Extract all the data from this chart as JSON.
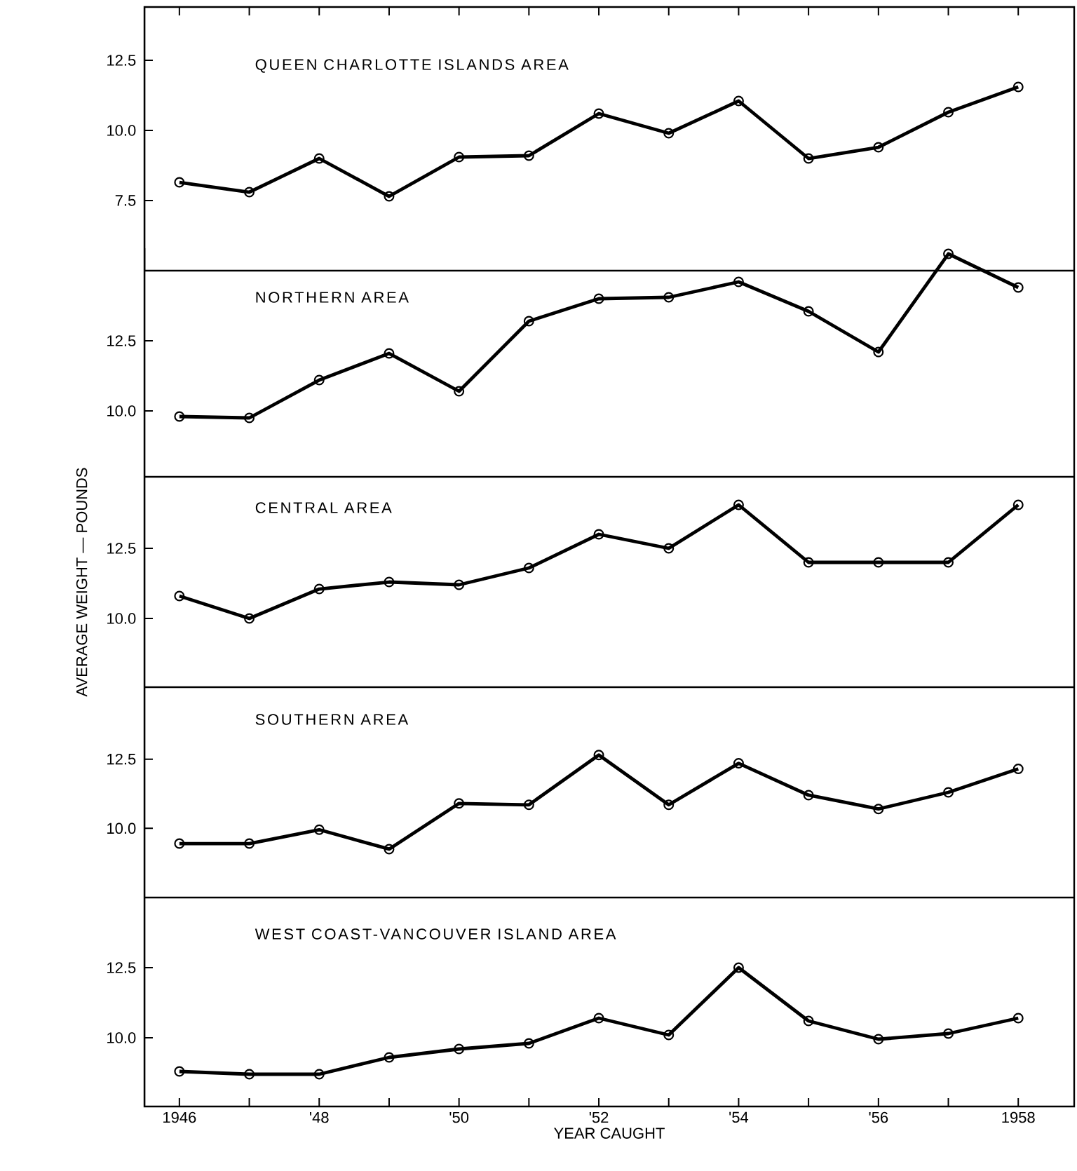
{
  "chart_data": [
    {
      "type": "line",
      "title": "QUEEN CHARLOTTE ISLANDS AREA",
      "x": [
        1946,
        1947,
        1948,
        1949,
        1950,
        1951,
        1952,
        1953,
        1954,
        1955,
        1956,
        1957,
        1958
      ],
      "series": [
        {
          "color": "#000000",
          "values": [
            8.15,
            7.8,
            9.0,
            7.65,
            9.05,
            9.1,
            10.6,
            9.9,
            11.05,
            9.0,
            9.4,
            10.65,
            11.55
          ]
        }
      ],
      "xlim": [
        1945.5,
        1958.8
      ],
      "ylim": [
        5.0,
        14.4
      ],
      "xticks": [
        {
          "value": 1946,
          "label": null
        },
        {
          "value": 1947,
          "label": null
        },
        {
          "value": 1948,
          "label": null
        },
        {
          "value": 1949,
          "label": null
        },
        {
          "value": 1950,
          "label": null
        },
        {
          "value": 1951,
          "label": null
        },
        {
          "value": 1952,
          "label": null
        },
        {
          "value": 1953,
          "label": null
        },
        {
          "value": 1954,
          "label": null
        },
        {
          "value": 1955,
          "label": null
        },
        {
          "value": 1956,
          "label": null
        },
        {
          "value": 1957,
          "label": null
        },
        {
          "value": 1958,
          "label": null
        }
      ],
      "yticks": [
        {
          "value": 7.5,
          "label": "7.5"
        },
        {
          "value": 10,
          "label": "10.0"
        },
        {
          "value": 12.5,
          "label": "12.5"
        }
      ],
      "tick_labels": "y",
      "marker": "circle",
      "line_style": "solid"
    },
    {
      "type": "line",
      "title": "NORTHERN AREA",
      "x": [
        1946,
        1947,
        1948,
        1949,
        1950,
        1951,
        1952,
        1953,
        1954,
        1955,
        1956,
        1957,
        1958
      ],
      "series": [
        {
          "color": "#000000",
          "values": [
            9.8,
            9.75,
            11.1,
            12.05,
            10.7,
            13.2,
            14.0,
            14.05,
            14.6,
            13.55,
            12.1,
            15.6,
            14.4
          ]
        }
      ],
      "xlim": [
        1945.5,
        1958.8
      ],
      "ylim": [
        7.65,
        15.8
      ],
      "yticks": [
        {
          "value": 10,
          "label": "10.0"
        },
        {
          "value": 12.5,
          "label": "12.5"
        }
      ],
      "tick_labels": "y",
      "marker": "circle",
      "line_style": "solid"
    },
    {
      "type": "line",
      "title": "CENTRAL AREA",
      "ylabel": "AVERAGE WEIGHT — POUNDS",
      "x": [
        1946,
        1947,
        1948,
        1949,
        1950,
        1951,
        1952,
        1953,
        1954,
        1955,
        1956,
        1957,
        1958
      ],
      "series": [
        {
          "color": "#000000",
          "values": [
            10.8,
            10.0,
            11.05,
            11.3,
            11.2,
            11.8,
            13.0,
            12.5,
            14.05,
            12.0,
            12.0,
            12.0,
            14.05
          ]
        }
      ],
      "xlim": [
        1945.5,
        1958.8
      ],
      "ylim": [
        7.55,
        15.05
      ],
      "yticks": [
        {
          "value": 10,
          "label": "10.0"
        },
        {
          "value": 12.5,
          "label": "12.5"
        }
      ],
      "tick_labels": "y",
      "marker": "circle",
      "line_style": "solid"
    },
    {
      "type": "line",
      "title": "SOUTHERN AREA",
      "x": [
        1946,
        1947,
        1948,
        1949,
        1950,
        1951,
        1952,
        1953,
        1954,
        1955,
        1956,
        1957,
        1958
      ],
      "series": [
        {
          "color": "#000000",
          "values": [
            9.45,
            9.45,
            9.95,
            9.25,
            10.9,
            10.85,
            12.65,
            10.85,
            12.35,
            11.2,
            10.7,
            11.3,
            12.15
          ]
        }
      ],
      "xlim": [
        1945.5,
        1958.8
      ],
      "ylim": [
        7.5,
        15.1
      ],
      "yticks": [
        {
          "value": 10,
          "label": "10.0"
        },
        {
          "value": 12.5,
          "label": "12.5"
        }
      ],
      "tick_labels": "y",
      "marker": "circle",
      "line_style": "solid"
    },
    {
      "type": "line",
      "title": "WEST COAST-VANCOUVER ISLAND AREA",
      "xlabel": "YEAR CAUGHT",
      "x": [
        1946,
        1947,
        1948,
        1949,
        1950,
        1951,
        1952,
        1953,
        1954,
        1955,
        1956,
        1957,
        1958
      ],
      "series": [
        {
          "color": "#000000",
          "values": [
            8.8,
            8.7,
            8.7,
            9.3,
            9.6,
            9.8,
            10.7,
            10.1,
            12.5,
            10.6,
            9.95,
            10.15,
            10.7
          ]
        }
      ],
      "xlim": [
        1945.5,
        1958.8
      ],
      "ylim": [
        7.55,
        15.0
      ],
      "xticks": [
        1946,
        {
          "value": 1947,
          "label": null
        },
        {
          "value": 1948,
          "label": "'48"
        },
        {
          "value": 1949,
          "label": null
        },
        {
          "value": 1950,
          "label": "'50"
        },
        {
          "value": 1951,
          "label": null
        },
        {
          "value": 1952,
          "label": "'52"
        },
        {
          "value": 1953,
          "label": null
        },
        {
          "value": 1954,
          "label": "'54"
        },
        {
          "value": 1955,
          "label": null
        },
        {
          "value": 1956,
          "label": "'56"
        },
        {
          "value": 1957,
          "label": null
        },
        1958
      ],
      "yticks": [
        {
          "value": 10,
          "label": "10.0"
        },
        {
          "value": 12.5,
          "label": "12.5"
        }
      ],
      "marker": "circle",
      "line_style": "solid"
    }
  ]
}
